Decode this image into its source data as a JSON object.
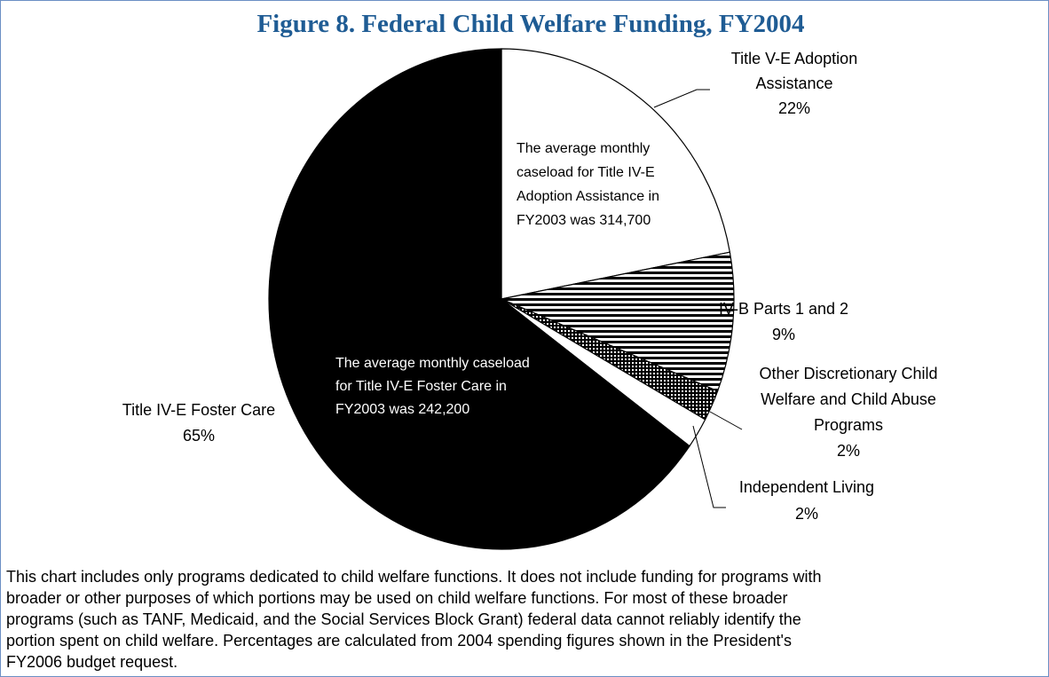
{
  "chart_data": {
    "type": "pie",
    "title": "Figure 8.  Federal Child Welfare Funding, FY2004",
    "categories": [
      "Title V-E Adoption\nAssistance",
      "IV-B Parts 1 and 2",
      "Other Discretionary Child\nWelfare and Child Abuse\nPrograms",
      "Independent Living",
      "Title IV-E Foster Care"
    ],
    "values": [
      22,
      9,
      2,
      2,
      65
    ],
    "value_labels": [
      "22%",
      "9%",
      "2%",
      "2%",
      "65%"
    ],
    "colors": [
      "#ffffff",
      "#ffffff",
      "#ffffff",
      "#ffffff",
      "#000000"
    ],
    "patterns": [
      null,
      "horizontal-lines",
      "dots",
      null,
      null
    ],
    "annotations": [
      [
        "The average monthly",
        "caseload for Title IV-E",
        "Adoption Assistance in",
        "FY2003 was 314,700"
      ],
      [
        "The average monthly caseload",
        "for Title IV-E Foster Care in",
        "FY2003 was 242,200"
      ]
    ],
    "note": [
      "This chart includes only programs dedicated to child welfare functions.  It does not include funding for programs with",
      "broader or other purposes of which portions may be used on child welfare functions.  For most of these broader",
      "programs (such as TANF, Medicaid, and the Social Services Block Grant) federal data cannot reliably identify the",
      "portion spent on child welfare.  Percentages are calculated from 2004 spending figures shown in the President's",
      "FY2006 budget request."
    ]
  }
}
